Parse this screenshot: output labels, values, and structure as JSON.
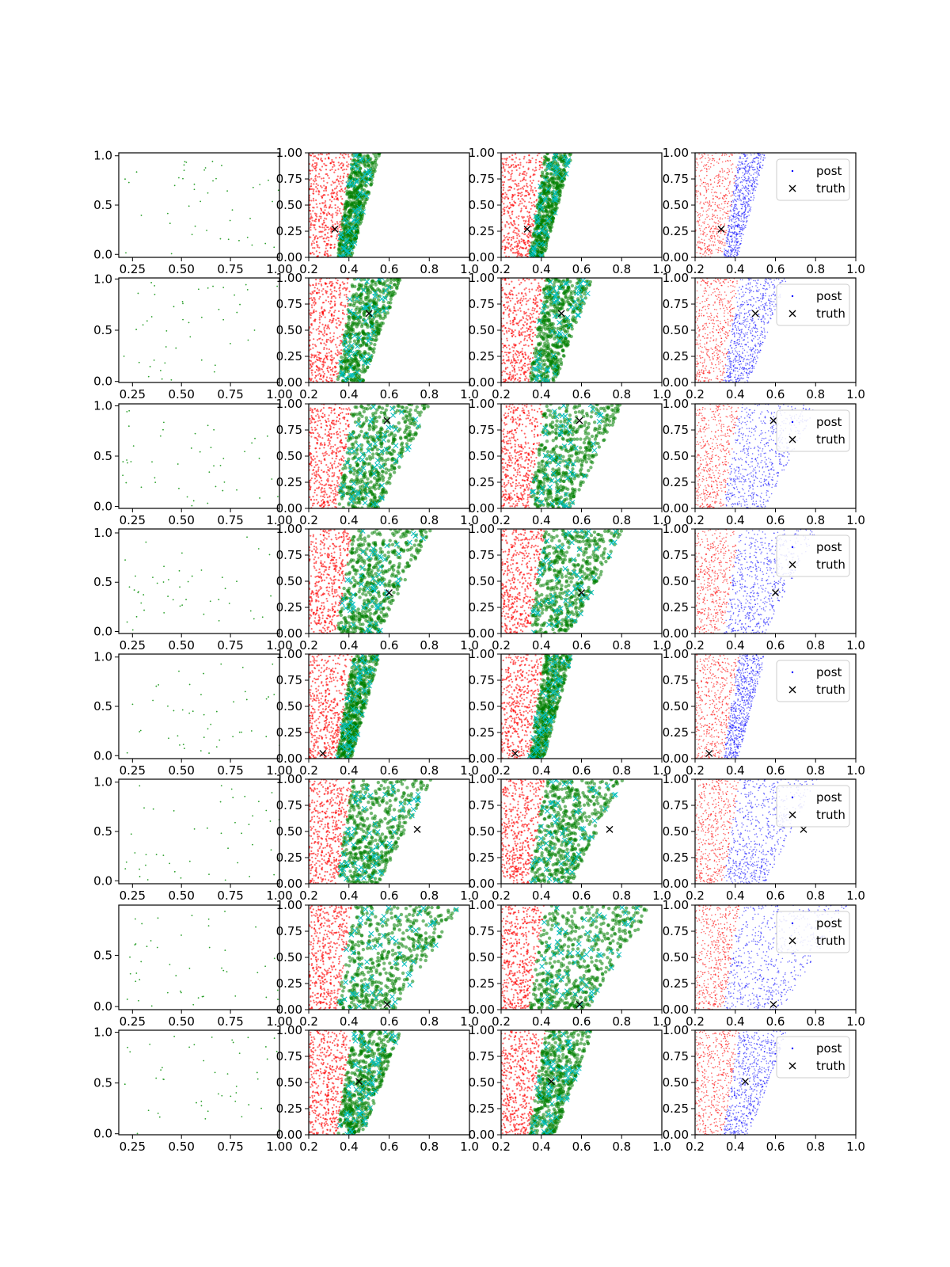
{
  "legend": {
    "post_label": "post",
    "truth_label": "truth"
  },
  "colors": {
    "prior_points": "#2ca02c",
    "reference_points": "#ff0000",
    "samples": "#008000",
    "sample_markers": "#00bfbf",
    "post": "#0000ff",
    "truth": "#000000"
  },
  "chart_data": {
    "type": "scatter",
    "layout": "8 rows x 4 columns of panels",
    "columns": [
      {
        "xlim": [
          0.18,
          1.0
        ],
        "xticks": [
          "0.25",
          "0.50",
          "0.75",
          "1.00"
        ],
        "content": "sparse points"
      },
      {
        "xlim": [
          0.2,
          1.0
        ],
        "ylim": [
          0.0,
          1.0
        ],
        "xticks": [
          "0.2",
          "0.4",
          "0.6",
          "0.8",
          "1.0"
        ],
        "yticks": [
          "0.00",
          "0.25",
          "0.50",
          "0.75",
          "1.00"
        ],
        "content": "red band, green cloud, cyan crosses, truth"
      },
      {
        "xlim": [
          0.2,
          1.0
        ],
        "ylim": [
          0.0,
          1.0
        ],
        "xticks": [
          "0.2",
          "0.4",
          "0.6",
          "0.8",
          "1.0"
        ],
        "yticks": [
          "0.00",
          "0.25",
          "0.50",
          "0.75",
          "1.00"
        ],
        "content": "red band, green cloud, cyan crosses, truth"
      },
      {
        "xlim": [
          0.2,
          1.0
        ],
        "ylim": [
          0.0,
          1.0
        ],
        "xticks": [
          "0.2",
          "0.4",
          "0.6",
          "0.8",
          "1.0"
        ],
        "yticks": [
          "0.00",
          "0.25",
          "0.50",
          "0.75",
          "1.00"
        ],
        "content": "red band, blue post cloud, truth, legend top-right"
      }
    ],
    "rows": [
      {
        "first_yticks": [
          "0.0",
          "0.5",
          "1.0"
        ],
        "first_ylim": [
          -0.03,
          1.03
        ],
        "truth": [
          0.33,
          0.27
        ],
        "spread": "narrow"
      },
      {
        "first_yticks": [
          "0.0",
          "0.5",
          "1.0"
        ],
        "first_ylim": [
          -0.01,
          1.01
        ],
        "truth": [
          0.5,
          0.66
        ],
        "spread": "medium"
      },
      {
        "first_yticks": [
          "0.0",
          "0.5",
          "1.0"
        ],
        "first_ylim": [
          -0.02,
          1.02
        ],
        "truth": [
          0.59,
          0.84
        ],
        "spread": "wide"
      },
      {
        "first_yticks": [
          "0.0",
          "0.5",
          "1.0"
        ],
        "first_ylim": [
          -0.02,
          1.04
        ],
        "truth": [
          0.6,
          0.39
        ],
        "spread": "wide"
      },
      {
        "first_yticks": [
          "0.0",
          "0.5",
          "1.0"
        ],
        "first_ylim": [
          -0.03,
          1.03
        ],
        "truth": [
          0.27,
          0.05
        ],
        "spread": "narrow"
      },
      {
        "first_yticks": [
          "0.0",
          "0.5",
          "1.0"
        ],
        "first_ylim": [
          -0.03,
          1.03
        ],
        "truth": [
          0.74,
          0.52
        ],
        "spread": "wide"
      },
      {
        "first_yticks": [
          "0.0",
          "0.5"
        ],
        "first_ylim": [
          -0.03,
          0.99
        ],
        "truth": [
          0.59,
          0.05
        ],
        "spread": "verywide"
      },
      {
        "first_yticks": [
          "0.0",
          "0.5",
          "1.0"
        ],
        "first_ylim": [
          -0.01,
          1.02
        ],
        "truth": [
          0.45,
          0.51
        ],
        "spread": "medium"
      }
    ]
  }
}
